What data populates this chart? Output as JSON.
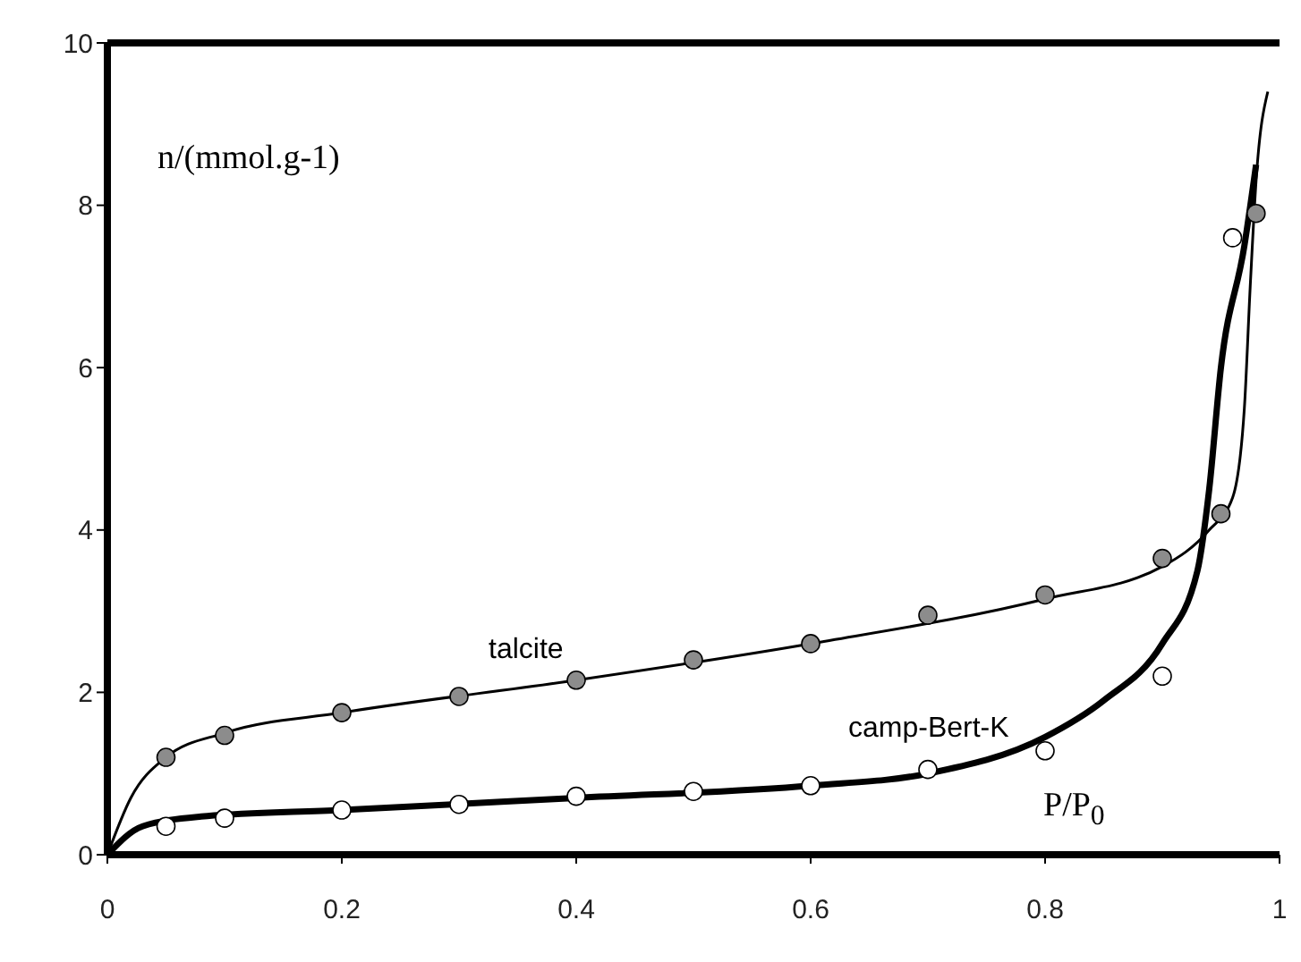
{
  "chart_data": {
    "type": "line",
    "xlabel": "P/P$_{0}$",
    "ylabel": "n/(mmol.g-1)",
    "xlim": [
      0,
      1
    ],
    "xticks": [
      0,
      0.2,
      0.4,
      0.6,
      0.8,
      1
    ],
    "ylim": [
      0,
      10
    ],
    "yticks": [
      0,
      2,
      4,
      6,
      8,
      10
    ],
    "grid": false,
    "series": [
      {
        "color": "#000000",
        "x": [
          0,
          0.02,
          0.05,
          0.1,
          0.2,
          0.4,
          0.6,
          0.8,
          0.9,
          0.94,
          0.96,
          0.97,
          0.975,
          0.98,
          0.99
        ],
        "values": [
          0,
          0.7,
          1.2,
          1.5,
          1.75,
          2.15,
          2.6,
          3.15,
          3.55,
          4.0,
          4.4,
          5.5,
          7,
          8.3,
          9.4
        ]
      },
      {
        "color": "#000000",
        "x": [
          0,
          0.03,
          0.08,
          0.2,
          0.4,
          0.6,
          0.7,
          0.8,
          0.85,
          0.9,
          0.93,
          0.94,
          0.95,
          0.97,
          0.98
        ],
        "values": [
          0,
          0.35,
          0.47,
          0.55,
          0.7,
          0.85,
          1.0,
          1.45,
          1.9,
          2.6,
          3.5,
          4.5,
          6.0,
          7.5,
          8.5
        ]
      },
      {
        "type": "scatter",
        "color": "#8c8c8c",
        "marker": "circle",
        "x": [
          0.05,
          0.1,
          0.2,
          0.3,
          0.4,
          0.5,
          0.6,
          0.7,
          0.8,
          0.9,
          0.95,
          0.98
        ],
        "values": [
          1.2,
          1.47,
          1.75,
          1.95,
          2.15,
          2.4,
          2.6,
          2.95,
          3.2,
          3.65,
          4.2,
          7.9
        ]
      },
      {
        "type": "scatter",
        "color": "#ffffff",
        "marker": "circle",
        "x": [
          0.05,
          0.1,
          0.2,
          0.3,
          0.4,
          0.5,
          0.6,
          0.7,
          0.8,
          0.9,
          0.96
        ],
        "values": [
          0.35,
          0.45,
          0.55,
          0.62,
          0.72,
          0.78,
          0.85,
          1.05,
          1.28,
          2.2,
          7.6
        ]
      }
    ],
    "annotations": [
      "talcite",
      "camp-Bert-K"
    ]
  }
}
